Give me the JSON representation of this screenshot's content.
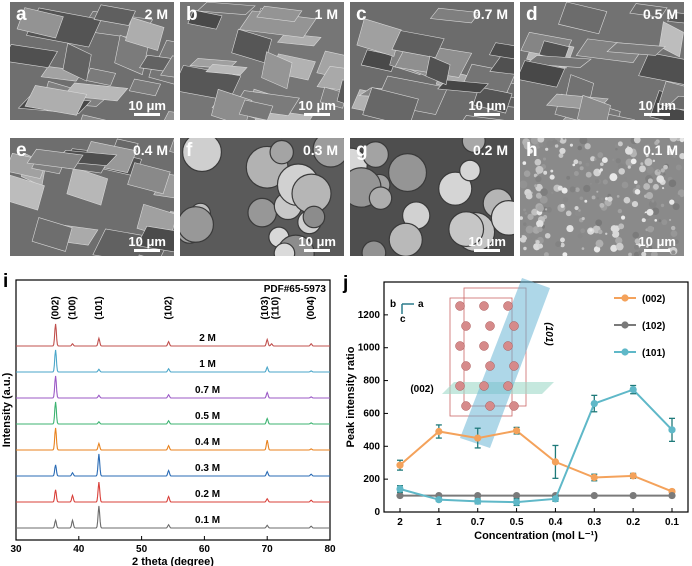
{
  "sem_panels": [
    {
      "label": "a",
      "conc": "2 M",
      "scale": "10 μm",
      "tone": "#6f6f6f",
      "morph": "plates"
    },
    {
      "label": "b",
      "conc": "1 M",
      "scale": "10 μm",
      "tone": "#767676",
      "morph": "plates"
    },
    {
      "label": "c",
      "conc": "0.7 M",
      "scale": "10 μm",
      "tone": "#6c6c6c",
      "morph": "plates"
    },
    {
      "label": "d",
      "conc": "0.5 M",
      "scale": "10 μm",
      "tone": "#727272",
      "morph": "plates"
    },
    {
      "label": "e",
      "conc": "0.4 M",
      "scale": "10 μm",
      "tone": "#6e6e6e",
      "morph": "plates"
    },
    {
      "label": "f",
      "conc": "0.3 M",
      "scale": "10 μm",
      "tone": "#5a5a5a",
      "morph": "spheres"
    },
    {
      "label": "g",
      "conc": "0.2 M",
      "scale": "10 μm",
      "tone": "#4e4e4e",
      "morph": "spheres"
    },
    {
      "label": "h",
      "conc": "0.1 M",
      "scale": "10 μm",
      "tone": "#8a8a8a",
      "morph": "powder"
    }
  ],
  "chart_data": [
    {
      "panel": "i",
      "type": "line",
      "title": "",
      "xlabel": "2 theta (degree)",
      "ylabel": "Intensity (a.u.)",
      "xlim": [
        30,
        80
      ],
      "xticks": [
        30,
        40,
        50,
        60,
        70,
        80
      ],
      "reference": "PDF#65-5973",
      "peak_labels": [
        {
          "hkl": "(002)",
          "x": 36.3
        },
        {
          "hkl": "(100)",
          "x": 39.0
        },
        {
          "hkl": "(101)",
          "x": 43.2
        },
        {
          "hkl": "(102)",
          "x": 54.3
        },
        {
          "hkl": "(103)",
          "x": 70.0
        },
        {
          "hkl": "(110)",
          "x": 70.7
        },
        {
          "hkl": "(004)",
          "x": 77.0
        }
      ],
      "series": [
        {
          "name": "2 M",
          "color": "#c0504d",
          "peaks": [
            [
              36.3,
              1.0
            ],
            [
              39.0,
              0.1
            ],
            [
              43.2,
              0.35
            ],
            [
              54.3,
              0.2
            ],
            [
              70.0,
              0.3
            ],
            [
              70.7,
              0.1
            ],
            [
              77.0,
              0.1
            ]
          ]
        },
        {
          "name": "1 M",
          "color": "#4aa6c9",
          "peaks": [
            [
              36.3,
              1.0
            ],
            [
              43.2,
              0.12
            ],
            [
              54.3,
              0.15
            ],
            [
              70.0,
              0.22
            ],
            [
              77.0,
              0.05
            ]
          ]
        },
        {
          "name": "0.7 M",
          "color": "#9b59c6",
          "peaks": [
            [
              36.3,
              1.0
            ],
            [
              43.2,
              0.12
            ],
            [
              54.3,
              0.15
            ],
            [
              70.0,
              0.25
            ],
            [
              77.0,
              0.05
            ]
          ]
        },
        {
          "name": "0.5 M",
          "color": "#3cb371",
          "peaks": [
            [
              36.3,
              1.0
            ],
            [
              43.2,
              0.1
            ],
            [
              54.3,
              0.15
            ],
            [
              70.0,
              0.25
            ],
            [
              77.0,
              0.05
            ]
          ]
        },
        {
          "name": "0.4 M",
          "color": "#e8821e",
          "peaks": [
            [
              36.3,
              1.0
            ],
            [
              43.2,
              0.3
            ],
            [
              54.3,
              0.2
            ],
            [
              70.0,
              0.45
            ],
            [
              77.0,
              0.05
            ]
          ]
        },
        {
          "name": "0.3 M",
          "color": "#2a6bb5",
          "peaks": [
            [
              36.3,
              0.5
            ],
            [
              39.0,
              0.15
            ],
            [
              43.2,
              1.0
            ],
            [
              54.3,
              0.25
            ],
            [
              70.0,
              0.2
            ],
            [
              77.0,
              0.08
            ]
          ]
        },
        {
          "name": "0.2 M",
          "color": "#d9403a",
          "peaks": [
            [
              36.3,
              0.55
            ],
            [
              39.0,
              0.3
            ],
            [
              43.2,
              0.9
            ],
            [
              54.3,
              0.25
            ],
            [
              70.0,
              0.15
            ],
            [
              77.0,
              0.08
            ]
          ]
        },
        {
          "name": "0.1 M",
          "color": "#6b6b6b",
          "peaks": [
            [
              36.3,
              0.35
            ],
            [
              39.0,
              0.35
            ],
            [
              43.2,
              1.0
            ],
            [
              54.3,
              0.15
            ],
            [
              70.0,
              0.12
            ],
            [
              77.0,
              0.08
            ]
          ]
        }
      ]
    },
    {
      "panel": "j",
      "type": "line",
      "title": "",
      "xlabel": "Concentration (mol L⁻¹)",
      "ylabel": "Peak intensity ratio",
      "ylim": [
        0,
        1400
      ],
      "yticks": [
        0,
        200,
        400,
        600,
        800,
        1000,
        1200
      ],
      "categories": [
        "2",
        "1",
        "0.7",
        "0.5",
        "0.4",
        "0.3",
        "0.2",
        "0.1"
      ],
      "legend_position": "top-right",
      "series": [
        {
          "name": "(002)",
          "color": "#f4a25b",
          "values": [
            285,
            490,
            450,
            495,
            305,
            210,
            220,
            125
          ],
          "errors": [
            30,
            40,
            60,
            20,
            100,
            20,
            15,
            10
          ]
        },
        {
          "name": "(102)",
          "color": "#7a7a7a",
          "values": [
            100,
            100,
            100,
            100,
            100,
            100,
            100,
            100
          ],
          "errors": [
            0,
            0,
            0,
            0,
            0,
            0,
            0,
            0
          ]
        },
        {
          "name": "(101)",
          "color": "#5fb8c8",
          "values": [
            140,
            75,
            65,
            60,
            80,
            660,
            745,
            500
          ],
          "errors": [
            20,
            10,
            15,
            20,
            15,
            50,
            25,
            70
          ]
        }
      ],
      "inset": {
        "axis_a": "a",
        "axis_b": "b",
        "axis_c": "c",
        "plane_002": "(002)",
        "plane_101": "(101)"
      }
    }
  ]
}
